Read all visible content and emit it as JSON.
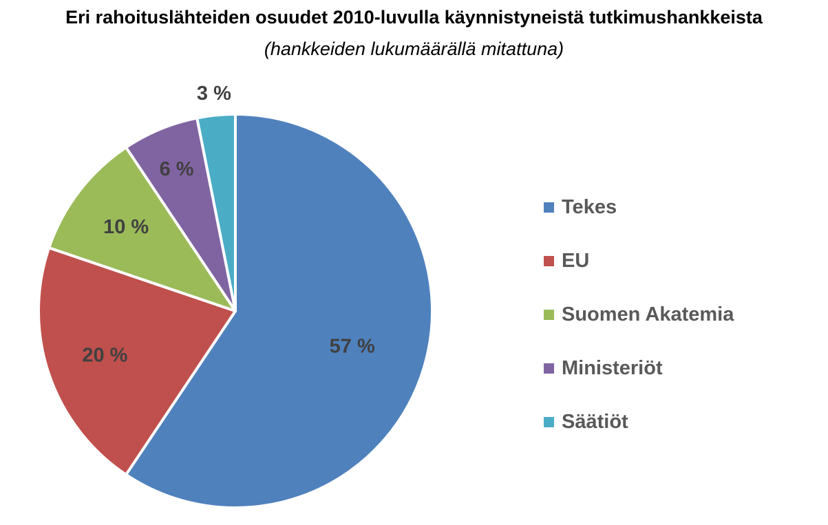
{
  "chart_data": {
    "type": "pie",
    "title": "Eri rahoituslähteiden osuudet 2010-luvulla käynnistyneistä tutkimushankkeista",
    "subtitle": "(hankkeiden lukumäärällä mitattuna)",
    "categories": [
      "Tekes",
      "EU",
      "Suomen Akatemia",
      "Ministeriöt",
      "Säätiöt"
    ],
    "values": [
      57,
      20,
      10,
      6,
      3
    ],
    "data_labels": [
      "57 %",
      "20 %",
      "10 %",
      "6 %",
      "3 %"
    ],
    "colors": [
      "#4f81bd",
      "#c0504d",
      "#9bbb59",
      "#8064a2",
      "#4bacc6"
    ],
    "legend_position": "right"
  }
}
